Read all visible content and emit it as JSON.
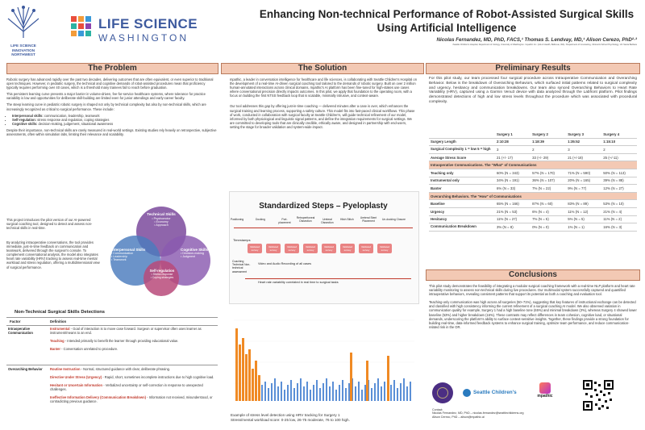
{
  "logos": {
    "lsiNw": [
      "LIFE SCIENCE",
      "INNOVATION",
      "NORTHWEST"
    ],
    "lsWash": [
      "LIFE SCIENCE",
      "WASHINGTON"
    ]
  },
  "header": {
    "title": "Enhancing Non-technical Performance of Robot-Assisted Surgical Skills Using Artificial Intelligence",
    "authors": "Nicolas Fernandez, MD, PhD, FACS,¹ Thomas S. Lendvay, MD,¹ Alison Cerezo, PhD²·³",
    "affiliations": "¹Seattle Children's Hospital, Department of Urology, University of Washington. ²mpathic Inc. (Life & Health, Bellevue, WA). ³Department of Counseling, Clinical & School Psychology, UC Santa Barbara"
  },
  "problem": {
    "heading": "The Problem",
    "p1": "Robotic surgery has advanced rapidly over the past two decades, delivering outcomes that are often equivalent, or even superior to traditional open techniques. However, in pediatric surgery, the technical and cognitive demands of robot-assisted procedures mean that proficiency typically requires performing over 40 cases, which is a threshold many trainees fail to reach before graduation.",
    "p2": "This persistent learning curve presents a major barrier in volume-driven, fee-for-service healthcare systems, where tolerance for practice variability is low and opportunities for deliberate skill-building are limited even for junior attendings and early-career faculty.",
    "p3": "The steep learning curve in pediatric robotic surgery is shaped not only by technical complexity but also by non-technical skills, which are increasingly recognized as critical to surgical performance. These include:",
    "bullets": [
      {
        "term": "Interpersonal skills:",
        "rest": " communication, leadership, teamwork"
      },
      {
        "term": "Self-regulation:",
        "rest": " stress response and regulation, coping strategies"
      },
      {
        "term": "Cognitive skills:",
        "rest": " decision-making, judgement, situational awareness"
      }
    ],
    "p4": "Despite their importance, non-technical skills are rarely measured in real-world settings. Existing studies rely heavily on retrospective, subjective assessments, often within simulation labs, limiting their relevance and scalability.",
    "p5": "This project introduces the pilot version of our AI-powered surgical coaching tool, designed to detect and assess non-technical skills in real-time.",
    "p6": "By analyzing intraoperative conversations, the tool provides immediate, just-in-time feedback on communication and teamwork, delivered through the surgeon's console. To complement conversational analysis, the model also integrates heart rate variability (HRV) tracking to assess real-time mental workload and stress regulation, offering a multidimensional view of surgical performance."
  },
  "venn": {
    "technical": {
      "title": "Technical Skills",
      "items": [
        "• Psychomotor",
        "• Economy",
        "• Approach"
      ]
    },
    "interpersonal": {
      "title": "Interpersonal Skills",
      "items": [
        "• Communication",
        "• Leadership",
        "• Teamwork"
      ]
    },
    "cognitive": {
      "title": "Cognitive Skills",
      "items": [
        "• Decision-making",
        "• Judgment"
      ]
    },
    "selfreg": {
      "title": "Self-regulation",
      "items": [
        "• Stress response",
        "• Coping strategies"
      ]
    }
  },
  "nts": {
    "title": "Non-Technical Surgical Skills Detections",
    "col_factor": "Factor",
    "col_def": "Definition",
    "rows": [
      {
        "factor": "Intraoperative Communication",
        "defs": [
          {
            "term": "Instrumental",
            "text": " - Goal of interaction is to move case forward. Surgeon or supervisor often uses learner as instrument/means to an end."
          },
          {
            "term": "Teaching",
            "text": " - Intended primarily to benefit the learner through providing educational value."
          },
          {
            "term": "Banter",
            "text": " - Conversation unrelated to procedure."
          }
        ]
      },
      {
        "factor": "Overarching Behavior",
        "defs": [
          {
            "term": "Routine Instruction",
            "text": " - Normal, structured guidance with clear, deliberate phrasing."
          },
          {
            "term": "Directive Under Stress (Urgency)",
            "text": " - Rapid, short, sometimes incomplete instructions due to high cognitive load."
          },
          {
            "term": "Hesitant or Uncertain Information",
            "text": " - Verbalized uncertainty or self-correction in response to unexpected challenges."
          },
          {
            "term": "Ineffective Information Delivery (Communication Breakdown)",
            "text": " - Information not received, misunderstood, or contradicting previous guidance."
          }
        ]
      }
    ]
  },
  "solution": {
    "heading": "The Solution",
    "p1": "mpathic, a leader in conversation intelligence for healthcare and life sciences, is collaborating with Seattle Children's Hospital on the development of a real-time AI-driven surgical coaching tool tailored to the demands of robotic surgery. Built on over 2 million human-annotated interactions across clinical domains, mpathic's AI platform has been fine-tuned for high-stakes use cases where conversational precision directly impacts outcomes. In this pilot, we apply that foundation to the operating room, with a focus on building the first NTSS feedback loop that is scalable, minimally intrusive, and context-aware.",
    "p2": "Our tool addresses this gap by offering just-in-time coaching — delivered minutes after a case is over, which enhances the surgical training and learning process, supporting a safety culture. This model fits into fast-paced clinical workflows. This phase of work, conducted in collaboration with surgical faculty at Seattle Children's, will guide technical refinement of our model, informed by both physiological and linguistic signal patterns, and define the integration requirements for surgical settings. We are committed to developing tools that are clinically credible, ethically aware, and designed in partnership with end-users, setting the stage for broader validation and system-wide impact."
  },
  "steps": {
    "title": "Standardized Steps – Pyeloplasty",
    "labels": [
      "Positioning",
      "Docking",
      "Port-placement",
      "Retroperitoneal Dissection",
      "Ureteral Dissection",
      "Hitch Stitch",
      "Ureteral Stent Placement",
      "Un-docking Closure"
    ],
    "timestamps": "Timestamps",
    "survey": "Validated survey",
    "coaching": "Coaching Technical Non-technical assessment",
    "video": "Video and Audio Recording of all cases",
    "hrline": "Heart rate variability correlated in real time to surgical tasks"
  },
  "hrv": {
    "caption": "Example of stress level detection using HRV tracking for Surgery 1",
    "caption_bold": "Surgery 1",
    "scale": "Stress/mental workload score:  0-25 low, 26-75 moderate, 76 to 100 high."
  },
  "results": {
    "heading": "Preliminary Results",
    "intro": "For this pilot study, our team processed four surgical procedure across Intraoperative Communication and Overarching Behavior. Below is the breakdown of Overarching Behaviors, which surfaced initial patterns related to surgical complexity and urgency, hesitancy and communication breakdowns. Our team also synced Overarching Behaviors to Heart Rate Variability (HRV), captured using a Garmin Venu3 device with data analyzed through the Labfront platform. Pilot findings demonstrated detections of high and low stress levels throughout the procedure which was associated with procedural complexity.",
    "columns": [
      "",
      "Surgery 1",
      "Surgery 2",
      "Surgery 3",
      "Surgery 4"
    ],
    "rows": [
      {
        "label": "Surgery Length",
        "vals": [
          "2:10:28",
          "1:18:39",
          "1:35:52",
          "1:15:10"
        ],
        "bold": true
      },
      {
        "label": "Surgical Complexity 1 = low    5 = high",
        "vals": [
          "3",
          "2",
          "3",
          "2"
        ],
        "bold": false
      },
      {
        "label": "Average Stress Score",
        "vals": [
          "21 (+/- 17)",
          "33 (+/- 29)",
          "21 (+/-18)",
          "25 (+/-11)"
        ],
        "bold": false
      },
      {
        "band": "Intraoperative Communications.  The  \"What\" of Communications"
      },
      {
        "label": "Teaching only",
        "vals": [
          "60% (N = 343)",
          "57% (N = 170)",
          "71% (N = 590)",
          "50% (N = 113)"
        ],
        "bold": false
      },
      {
        "label": "Instrumental only",
        "vals": [
          "34% (N = 191)",
          "36% (N = 107)",
          "20% (N = 165)",
          "39% (N = 88)"
        ],
        "bold": false
      },
      {
        "label": "Banter",
        "vals": [
          "6% (N = 33)",
          "7% (N = 22)",
          "9% (N = 77)",
          "12% (N = 27)"
        ],
        "bold": false
      },
      {
        "band": "Overarching Behaviors.  The  \"How\" of Communications"
      },
      {
        "label": "Baseline",
        "vals": [
          "65% (N = 166)",
          "87% (N = 60)",
          "83% (N = 89)",
          "53% (N = 10)"
        ],
        "bold": false
      },
      {
        "label": "Urgency",
        "vals": [
          "21% (N = 53)",
          "6% (N = 4)",
          "11% (N = 12)",
          "21% (N = 4)"
        ],
        "bold": false
      },
      {
        "label": "Hesitancy",
        "vals": [
          "11% (N = 27)",
          "7% (N = 5)",
          "5% (N = 5)",
          "11% (N = 2)"
        ],
        "bold": false
      },
      {
        "label": "Communication Breakdown",
        "vals": [
          "3% (N = 8)",
          "0% (N = 0)",
          "1% (N = 1)",
          "16% (N = 3)"
        ],
        "bold": false
      }
    ]
  },
  "conclusions": {
    "heading": "Conclusions",
    "p1": "This pilot study demonstrates the feasibility of integrating a modular surgical coaching framework with a real-time NLP platform and heart rate variability monitoring to assess non-technical skills during live procedures. Our multimodal system successfully captured and quantified intraoperative behaviors, revealing consistent patterns that support its potential as both a coaching and evaluation tool.",
    "p2": "Teaching-only communication was high across all surgeries (50–71%), suggesting that key features of instructional exchange can be detected and classified with high consistency informing the current refinement of a surgical coaching AI model. We also observed variation in communication quality for example, Surgery 1 had a high baseline tone (65%) and minimal breakdown (3%), whereas Surgery 4 showed lower baseline (53%) and higher breakdown (16%). These contrasts may reflect differences in team cohesion, cognitive load, or situational demands, underscoring the platform's ability to surface context-sensitive insights. Together, these findings provide a strong foundation for building real-time, data-informed feedback systems to enhance surgical training, optimize team performance, and reduce communication-related risk in the OR."
  },
  "footer": {
    "sponsor_logos": [
      "Seattle Children's",
      "mpathic"
    ],
    "contact_label": "Contact:",
    "contact1": "Nicolas Fernandez, MD, PhD – nicolas.fernandez@seattlechildrens.org",
    "contact2": "Alison Cerezo, PhD – alison@mpathic.ai"
  },
  "colors": {
    "section_header": "#f3c9b4",
    "accent_red": "#c0392b",
    "technical_circle": "#7b4a9c",
    "interpersonal_circle": "#4a7bbd",
    "cognitive_circle": "#8a5ab0",
    "selfreg_circle": "#b84a7a"
  }
}
